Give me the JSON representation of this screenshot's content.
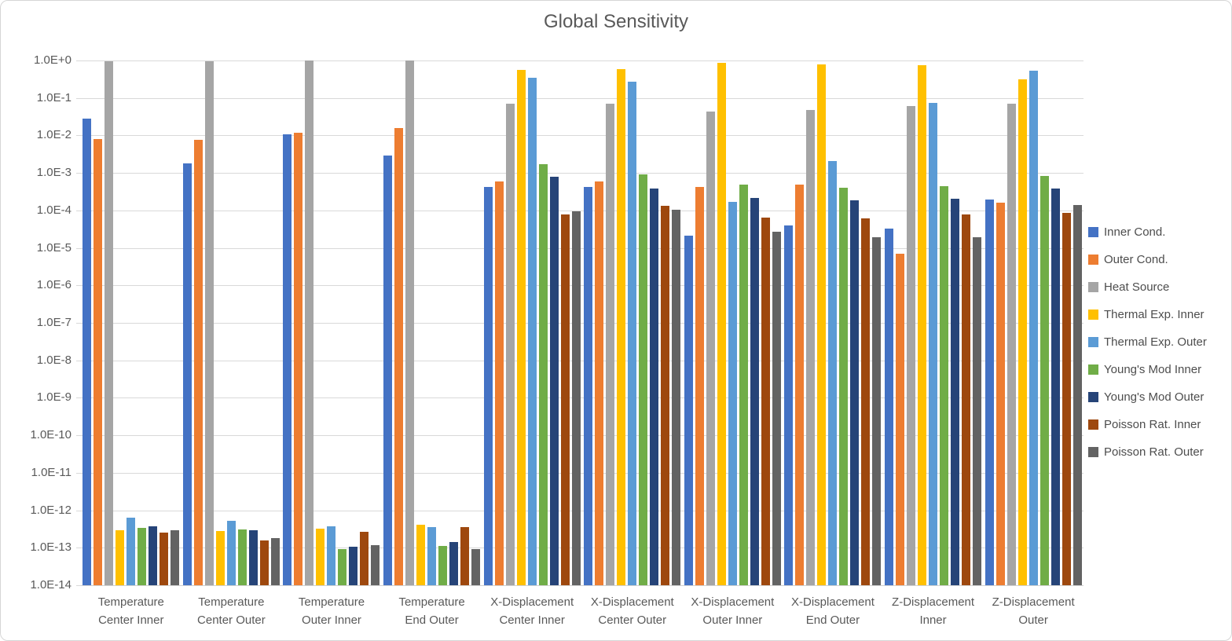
{
  "title": "Global Sensitivity",
  "chart_data": {
    "type": "bar",
    "title": "Global Sensitivity",
    "y_scale": "log10",
    "ylim": [
      1e-14,
      1.0
    ],
    "grid": "horizontal",
    "legend_position": "right",
    "y_tick_labels": [
      "1.0E+0",
      "1.0E-1",
      "1.0E-2",
      "1.0E-3",
      "1.0E-4",
      "1.0E-5",
      "1.0E-6",
      "1.0E-7",
      "1.0E-8",
      "1.0E-9",
      "1.0E-10",
      "1.0E-11",
      "1.0E-12",
      "1.0E-13",
      "1.0E-14"
    ],
    "categories": [
      "Temperature\nCenter Inner",
      "Temperature\nCenter Outer",
      "Temperature\nOuter Inner",
      "Temperature\nEnd Outer",
      "X-Displacement\nCenter Inner",
      "X-Displacement\nCenter Outer",
      "X-Displacement\nOuter Inner",
      "X-Displacement\nEnd Outer",
      "Z-Displacement\nInner",
      "Z-Displacement\nOuter"
    ],
    "series": [
      {
        "name": "Inner Cond.",
        "color": "#4472C4",
        "values": [
          0.028,
          0.0018,
          0.011,
          0.0029,
          0.00042,
          0.00043,
          2.1e-05,
          4e-05,
          3.3e-05,
          0.0002
        ]
      },
      {
        "name": "Outer Cond.",
        "color": "#ED7D31",
        "values": [
          0.008,
          0.0078,
          0.012,
          0.016,
          0.00058,
          0.00058,
          0.00042,
          0.0005,
          7e-06,
          0.00016
        ]
      },
      {
        "name": "Heat Source",
        "color": "#A5A5A5",
        "values": [
          0.96,
          0.97,
          0.98,
          0.98,
          0.072,
          0.072,
          0.044,
          0.047,
          0.06,
          0.07
        ]
      },
      {
        "name": "Thermal Exp. Inner",
        "color": "#FFC000",
        "values": [
          3e-13,
          2.8e-13,
          3.3e-13,
          4.1e-13,
          0.55,
          0.6,
          0.87,
          0.8,
          0.76,
          0.31
        ]
      },
      {
        "name": "Thermal Exp. Outer",
        "color": "#5B9BD5",
        "values": [
          6.3e-13,
          5.2e-13,
          3.7e-13,
          3.6e-13,
          0.34,
          0.27,
          0.00017,
          0.0021,
          0.074,
          0.54
        ]
      },
      {
        "name": "Young's Mod Inner",
        "color": "#70AD47",
        "values": [
          3.4e-13,
          3.1e-13,
          9.1e-14,
          1.1e-13,
          0.0017,
          0.0009,
          0.0005,
          0.00041,
          0.00044,
          0.00085
        ]
      },
      {
        "name": "Young's Mod Outer",
        "color": "#264478",
        "values": [
          3.8e-13,
          2.9e-13,
          1.05e-13,
          1.45e-13,
          0.0008,
          0.00039,
          0.00022,
          0.00019,
          0.00021,
          0.00038
        ]
      },
      {
        "name": "Poisson Rat. Inner",
        "color": "#9E480E",
        "values": [
          2.5e-13,
          1.6e-13,
          2.7e-13,
          3.5e-13,
          7.8e-05,
          0.00013,
          6.4e-05,
          6e-05,
          7.8e-05,
          8.7e-05
        ]
      },
      {
        "name": "Poisson Rat. Outer",
        "color": "#636363",
        "values": [
          2.9e-13,
          1.8e-13,
          1.15e-13,
          9.2e-14,
          9.7e-05,
          0.000105,
          2.7e-05,
          1.9e-05,
          1.9e-05,
          0.00014
        ]
      }
    ]
  }
}
